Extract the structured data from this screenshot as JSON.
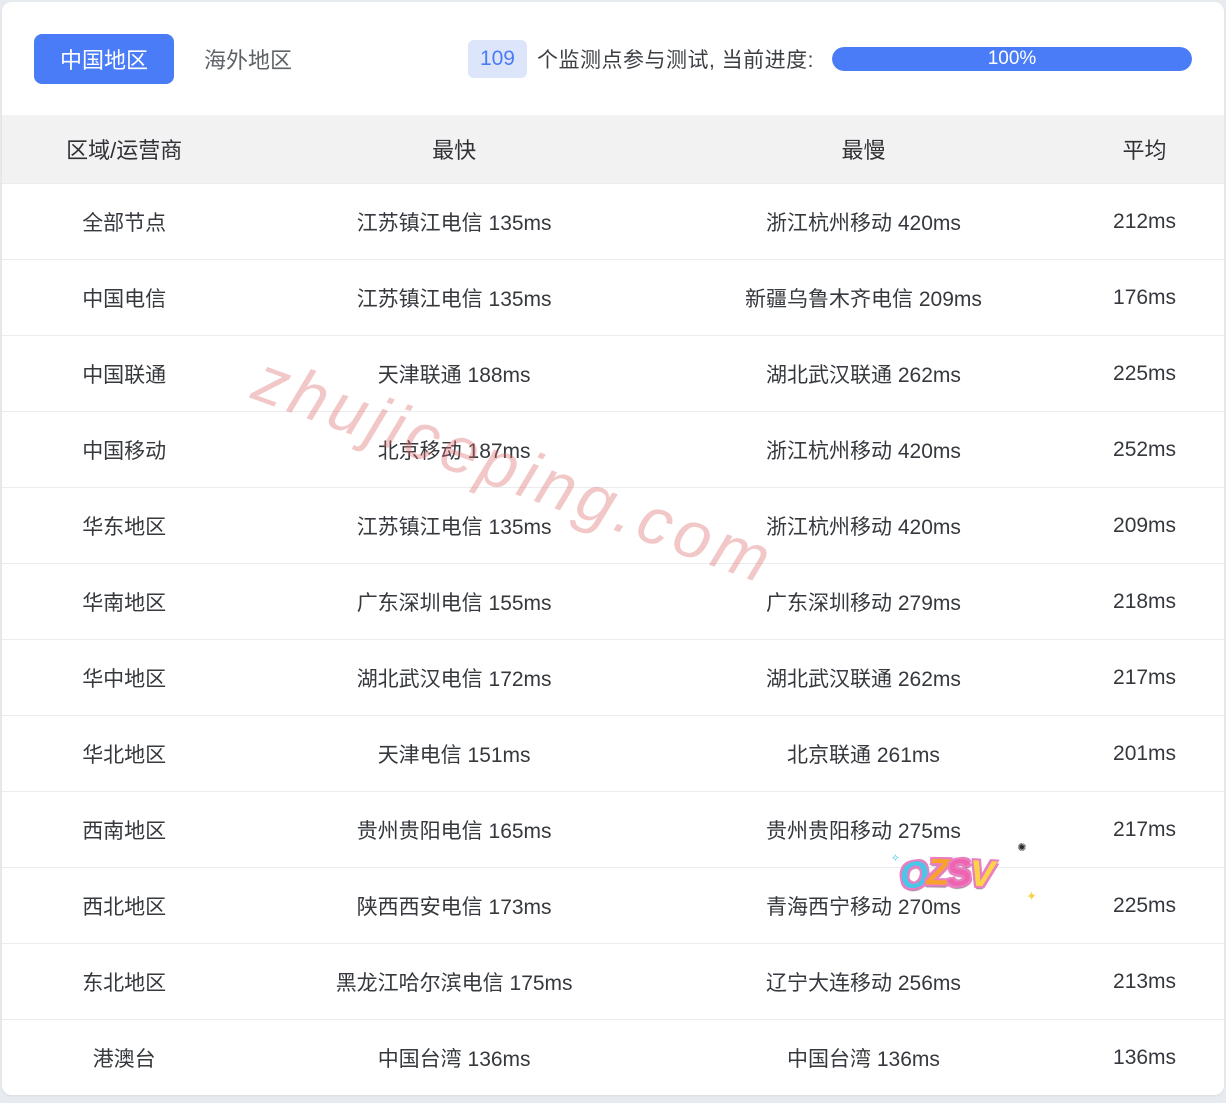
{
  "colors": {
    "accent": "#4a7cf7",
    "badge_bg": "#dde5fb",
    "header_bg": "#f2f2f2",
    "watermark_pink": "rgba(222,107,107,0.38)"
  },
  "tabs": [
    {
      "label": "中国地区",
      "active": true
    },
    {
      "label": "海外地区",
      "active": false
    }
  ],
  "status": {
    "count": "109",
    "text": "个监测点参与测试, 当前进度:",
    "progress_label": "100%",
    "progress_value": 100
  },
  "table": {
    "headers": [
      "区域/运营商",
      "最快",
      "最慢",
      "平均"
    ],
    "rows": [
      {
        "region": "全部节点",
        "fastest": "江苏镇江电信 135ms",
        "slowest": "浙江杭州移动 420ms",
        "avg": "212ms"
      },
      {
        "region": "中国电信",
        "fastest": "江苏镇江电信 135ms",
        "slowest": "新疆乌鲁木齐电信 209ms",
        "avg": "176ms"
      },
      {
        "region": "中国联通",
        "fastest": "天津联通 188ms",
        "slowest": "湖北武汉联通 262ms",
        "avg": "225ms"
      },
      {
        "region": "中国移动",
        "fastest": "北京移动 187ms",
        "slowest": "浙江杭州移动 420ms",
        "avg": "252ms"
      },
      {
        "region": "华东地区",
        "fastest": "江苏镇江电信 135ms",
        "slowest": "浙江杭州移动 420ms",
        "avg": "209ms"
      },
      {
        "region": "华南地区",
        "fastest": "广东深圳电信 155ms",
        "slowest": "广东深圳移动 279ms",
        "avg": "218ms"
      },
      {
        "region": "华中地区",
        "fastest": "湖北武汉电信 172ms",
        "slowest": "湖北武汉联通 262ms",
        "avg": "217ms"
      },
      {
        "region": "华北地区",
        "fastest": "天津电信 151ms",
        "slowest": "北京联通 261ms",
        "avg": "201ms"
      },
      {
        "region": "西南地区",
        "fastest": "贵州贵阳电信 165ms",
        "slowest": "贵州贵阳移动 275ms",
        "avg": "217ms"
      },
      {
        "region": "西北地区",
        "fastest": "陕西西安电信 173ms",
        "slowest": "青海西宁移动 270ms",
        "avg": "225ms"
      },
      {
        "region": "东北地区",
        "fastest": "黑龙江哈尔滨电信 175ms",
        "slowest": "辽宁大连移动 256ms",
        "avg": "213ms"
      },
      {
        "region": "港澳台",
        "fastest": "中国台湾 136ms",
        "slowest": "中国台湾 136ms",
        "avg": "136ms"
      }
    ]
  },
  "watermark": "zhujiceping.com",
  "sticker": {
    "letters": [
      {
        "ch": "O"
      },
      {
        "ch": "Z"
      },
      {
        "ch": "S"
      },
      {
        "ch": "V"
      }
    ],
    "sparkles": [
      "✦",
      "✺",
      "✧"
    ]
  }
}
